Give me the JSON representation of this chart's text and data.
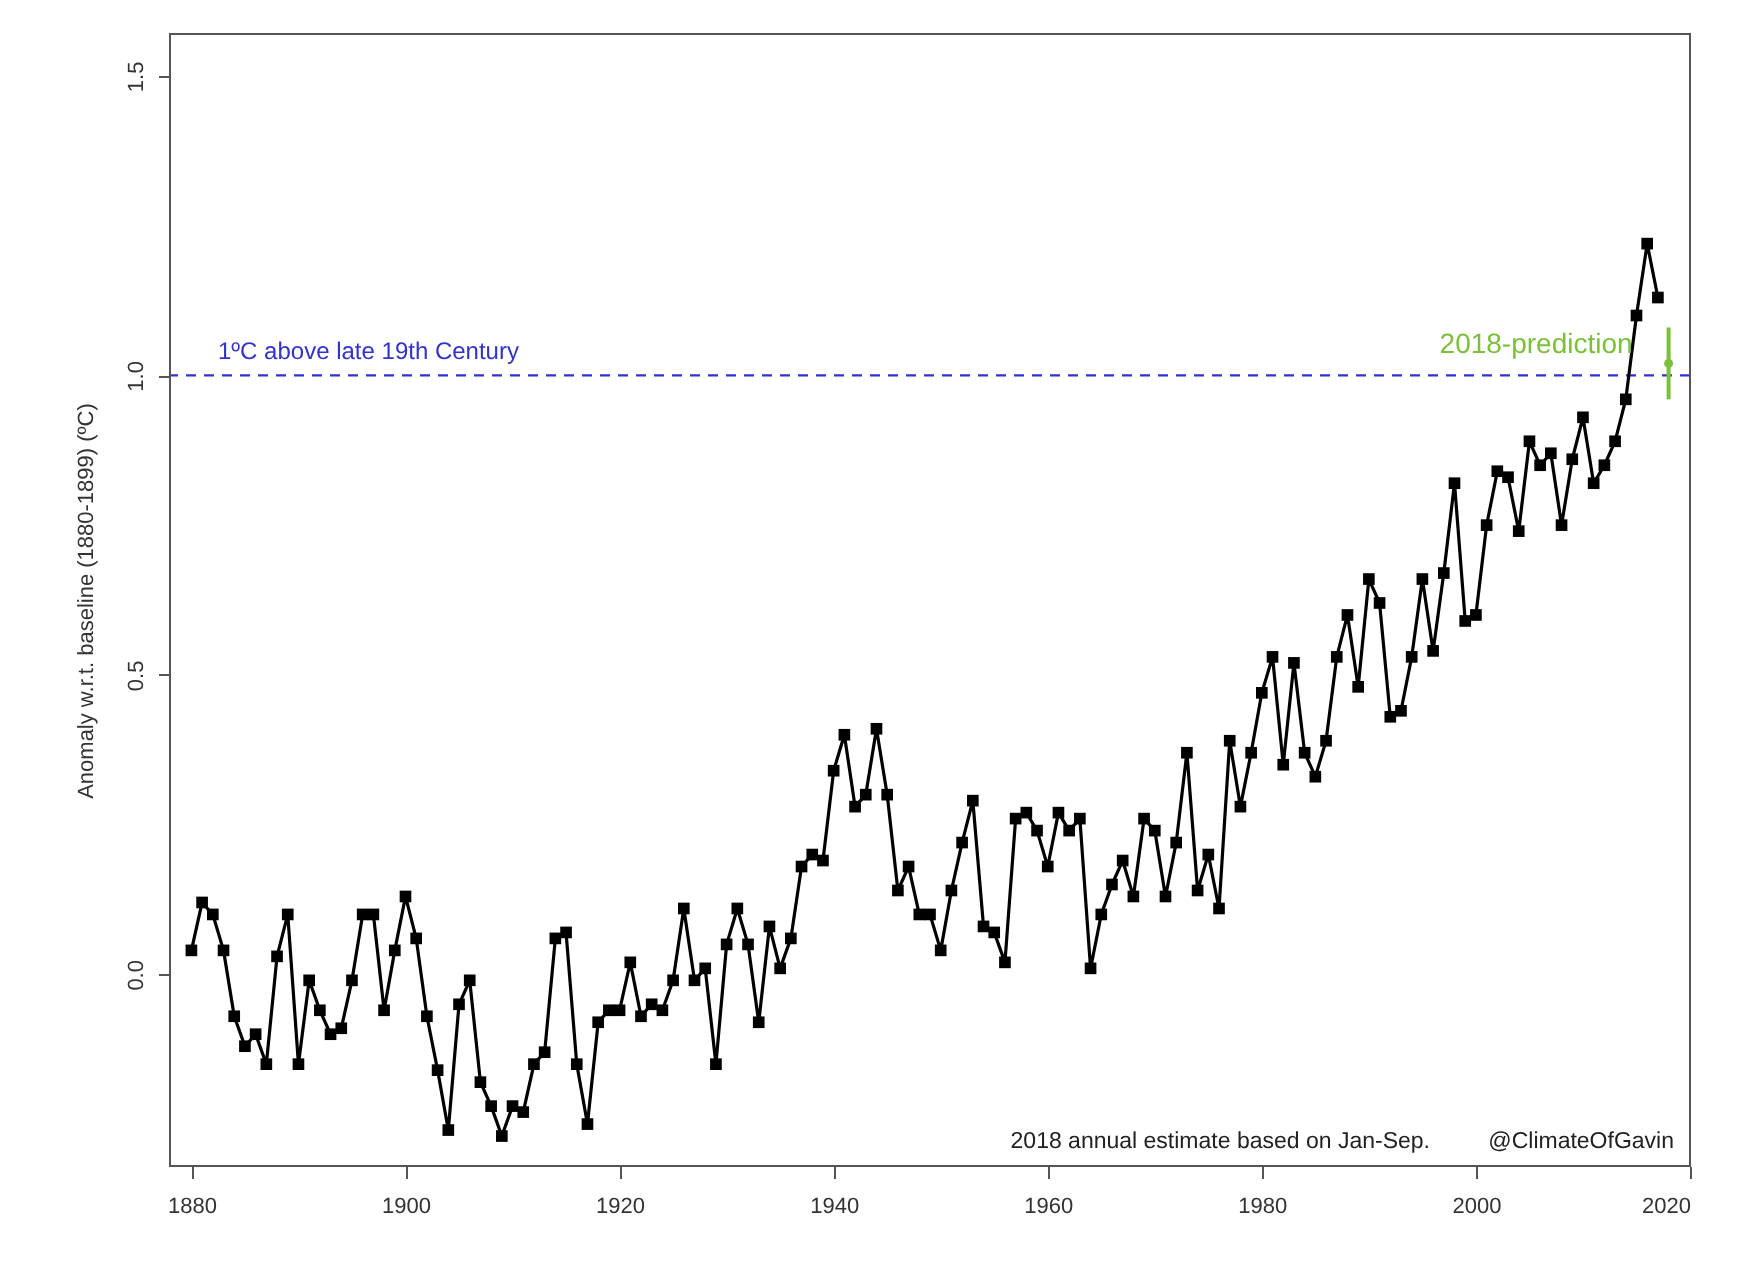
{
  "chart_data": {
    "type": "line",
    "ylabel": "Anomaly w.r.t. baseline (1880-1899) (ºC)",
    "xlim": [
      1878,
      2020
    ],
    "xticks": [
      1880,
      1900,
      1920,
      1940,
      1960,
      1980,
      2000,
      2020
    ],
    "ylim": [
      -0.32,
      1.57
    ],
    "yticks": [
      {
        "value": 0,
        "label": "0.0"
      },
      {
        "value": 0.5,
        "label": "0.5"
      },
      {
        "value": 1,
        "label": "1.0"
      },
      {
        "value": 1.5,
        "label": "1.5"
      }
    ],
    "grid": false,
    "marker": "square",
    "line_style": "solid",
    "ref_lines": [
      {
        "axis": "y",
        "value": 1.0,
        "label": "1ºC above late 19th Century",
        "color": "#3333cc",
        "line_style": "dashed"
      }
    ],
    "annotations": [
      "2018 annual estimate based on Jan-Sep.",
      "@ClimateOfGavin"
    ],
    "series": [
      {
        "color": "#000000",
        "x": [
          1880,
          1881,
          1882,
          1883,
          1884,
          1885,
          1886,
          1887,
          1888,
          1889,
          1890,
          1891,
          1892,
          1893,
          1894,
          1895,
          1896,
          1897,
          1898,
          1899,
          1900,
          1901,
          1902,
          1903,
          1904,
          1905,
          1906,
          1907,
          1908,
          1909,
          1910,
          1911,
          1912,
          1913,
          1914,
          1915,
          1916,
          1917,
          1918,
          1919,
          1920,
          1921,
          1922,
          1923,
          1924,
          1925,
          1926,
          1927,
          1928,
          1929,
          1930,
          1931,
          1932,
          1933,
          1934,
          1935,
          1936,
          1937,
          1938,
          1939,
          1940,
          1941,
          1942,
          1943,
          1944,
          1945,
          1946,
          1947,
          1948,
          1949,
          1950,
          1951,
          1952,
          1953,
          1954,
          1955,
          1956,
          1957,
          1958,
          1959,
          1960,
          1961,
          1962,
          1963,
          1964,
          1965,
          1966,
          1967,
          1968,
          1969,
          1970,
          1971,
          1972,
          1973,
          1974,
          1975,
          1976,
          1977,
          1978,
          1979,
          1980,
          1981,
          1982,
          1983,
          1984,
          1985,
          1986,
          1987,
          1988,
          1989,
          1990,
          1991,
          1992,
          1993,
          1994,
          1995,
          1996,
          1997,
          1998,
          1999,
          2000,
          2001,
          2002,
          2003,
          2004,
          2005,
          2006,
          2007,
          2008,
          2009,
          2010,
          2011,
          2012,
          2013,
          2014,
          2015,
          2016,
          2017
        ],
        "values": [
          0.04,
          0.12,
          0.1,
          0.04,
          -0.07,
          -0.12,
          -0.1,
          -0.15,
          0.03,
          0.1,
          -0.15,
          -0.01,
          -0.06,
          -0.1,
          -0.09,
          -0.01,
          0.1,
          0.1,
          -0.06,
          0.04,
          0.13,
          0.06,
          -0.07,
          -0.16,
          -0.26,
          -0.05,
          -0.01,
          -0.18,
          -0.22,
          -0.27,
          -0.22,
          -0.23,
          -0.15,
          -0.13,
          0.06,
          0.07,
          -0.15,
          -0.25,
          -0.08,
          -0.06,
          -0.06,
          0.02,
          -0.07,
          -0.05,
          -0.06,
          -0.01,
          0.11,
          -0.01,
          0.01,
          -0.15,
          0.05,
          0.11,
          0.05,
          -0.08,
          0.08,
          0.01,
          0.06,
          0.18,
          0.2,
          0.19,
          0.34,
          0.4,
          0.28,
          0.3,
          0.41,
          0.3,
          0.14,
          0.18,
          0.1,
          0.1,
          0.04,
          0.14,
          0.22,
          0.29,
          0.08,
          0.07,
          0.02,
          0.26,
          0.27,
          0.24,
          0.18,
          0.27,
          0.24,
          0.26,
          0.01,
          0.1,
          0.15,
          0.19,
          0.13,
          0.26,
          0.24,
          0.13,
          0.22,
          0.37,
          0.14,
          0.2,
          0.11,
          0.39,
          0.28,
          0.37,
          0.47,
          0.53,
          0.35,
          0.52,
          0.37,
          0.33,
          0.39,
          0.53,
          0.6,
          0.48,
          0.66,
          0.62,
          0.43,
          0.44,
          0.53,
          0.66,
          0.54,
          0.67,
          0.82,
          0.59,
          0.6,
          0.75,
          0.84,
          0.83,
          0.74,
          0.89,
          0.85,
          0.87,
          0.75,
          0.86,
          0.93,
          0.82,
          0.85,
          0.89,
          0.96,
          1.1,
          1.22,
          1.13
        ]
      },
      {
        "type": "scatter",
        "name": "2018-prediction",
        "color": "#7cbf3a",
        "marker": "circle",
        "x": [
          2018
        ],
        "values": [
          1.02
        ],
        "errors": [
          [
            0.96,
            1.08
          ]
        ]
      }
    ]
  }
}
